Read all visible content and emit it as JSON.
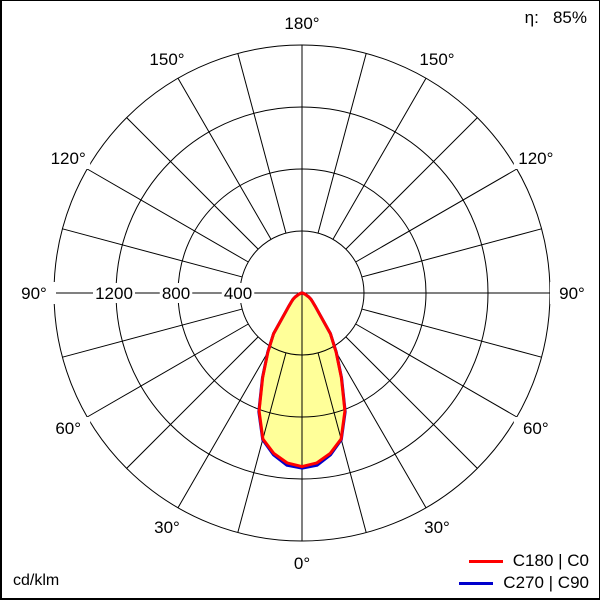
{
  "efficiency": {
    "label": "η:",
    "value": "85%"
  },
  "colors": {
    "fill": "#ffff99",
    "c0": "#ff0000",
    "c90": "#0000cc"
  },
  "chart_data": {
    "type": "polar",
    "unit_label": "cd/klm",
    "radial_ticks": [
      400,
      800,
      1200
    ],
    "radial_range": [
      0,
      1600
    ],
    "radial_tick_labels": [
      "400",
      "800",
      "1200"
    ],
    "angle_labels_left": [
      "0°",
      "30°",
      "60°",
      "90°",
      "120°",
      "150°",
      "180°"
    ],
    "angle_labels_right": [
      "30°",
      "60°",
      "90°",
      "120°",
      "150°"
    ],
    "grid": true,
    "angular_grid_step_deg": 15,
    "legend_position": "bottom-right",
    "gamma_deg": [
      0,
      5,
      10,
      15,
      20,
      25,
      30,
      35,
      40,
      45,
      50,
      55,
      60,
      70,
      80,
      90
    ],
    "series": [
      {
        "name": "C180 | C0",
        "color": "#ff0000",
        "values": [
          1120,
          1100,
          1050,
          975,
          810,
          600,
          440,
          320,
          175,
          120,
          90,
          70,
          50,
          20,
          5,
          0
        ]
      },
      {
        "name": "C270 | C90",
        "color": "#0000cc",
        "values": [
          1130,
          1115,
          1060,
          980,
          815,
          605,
          442,
          320,
          175,
          120,
          90,
          70,
          50,
          20,
          5,
          0
        ]
      }
    ]
  }
}
